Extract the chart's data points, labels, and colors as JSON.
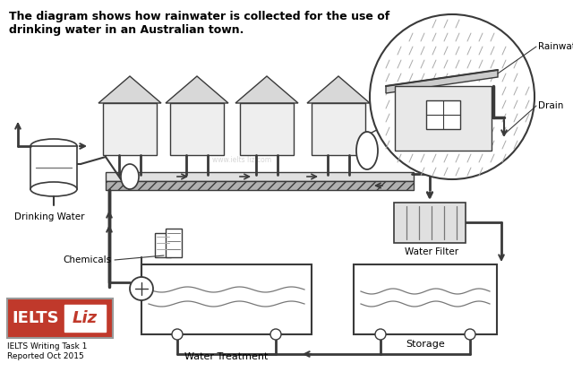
{
  "title_line1": "The diagram shows how rainwater is collected for the use of",
  "title_line2": "drinking water in an Australian town.",
  "bg_color": "#ffffff",
  "watermark": "www.ielts liz.com",
  "gray": "#3a3a3a",
  "lgray": "#777777",
  "llgray": "#aaaaaa",
  "hatch_gray": "#999999",
  "labels": {
    "rainwater": "Rainwater",
    "drain": "Drain",
    "drinking_water": "Drinking Water",
    "water_filter": "Water Filter",
    "chemicals": "Chemicals",
    "water_treatment": "Water Treatment",
    "storage": "Storage"
  },
  "ielts_box": {
    "bg": "#c0392b",
    "text1": "IELTS",
    "text2": "Liz",
    "sub1": "IELTS Writing Task 1",
    "sub2": "Reported Oct 2015"
  }
}
